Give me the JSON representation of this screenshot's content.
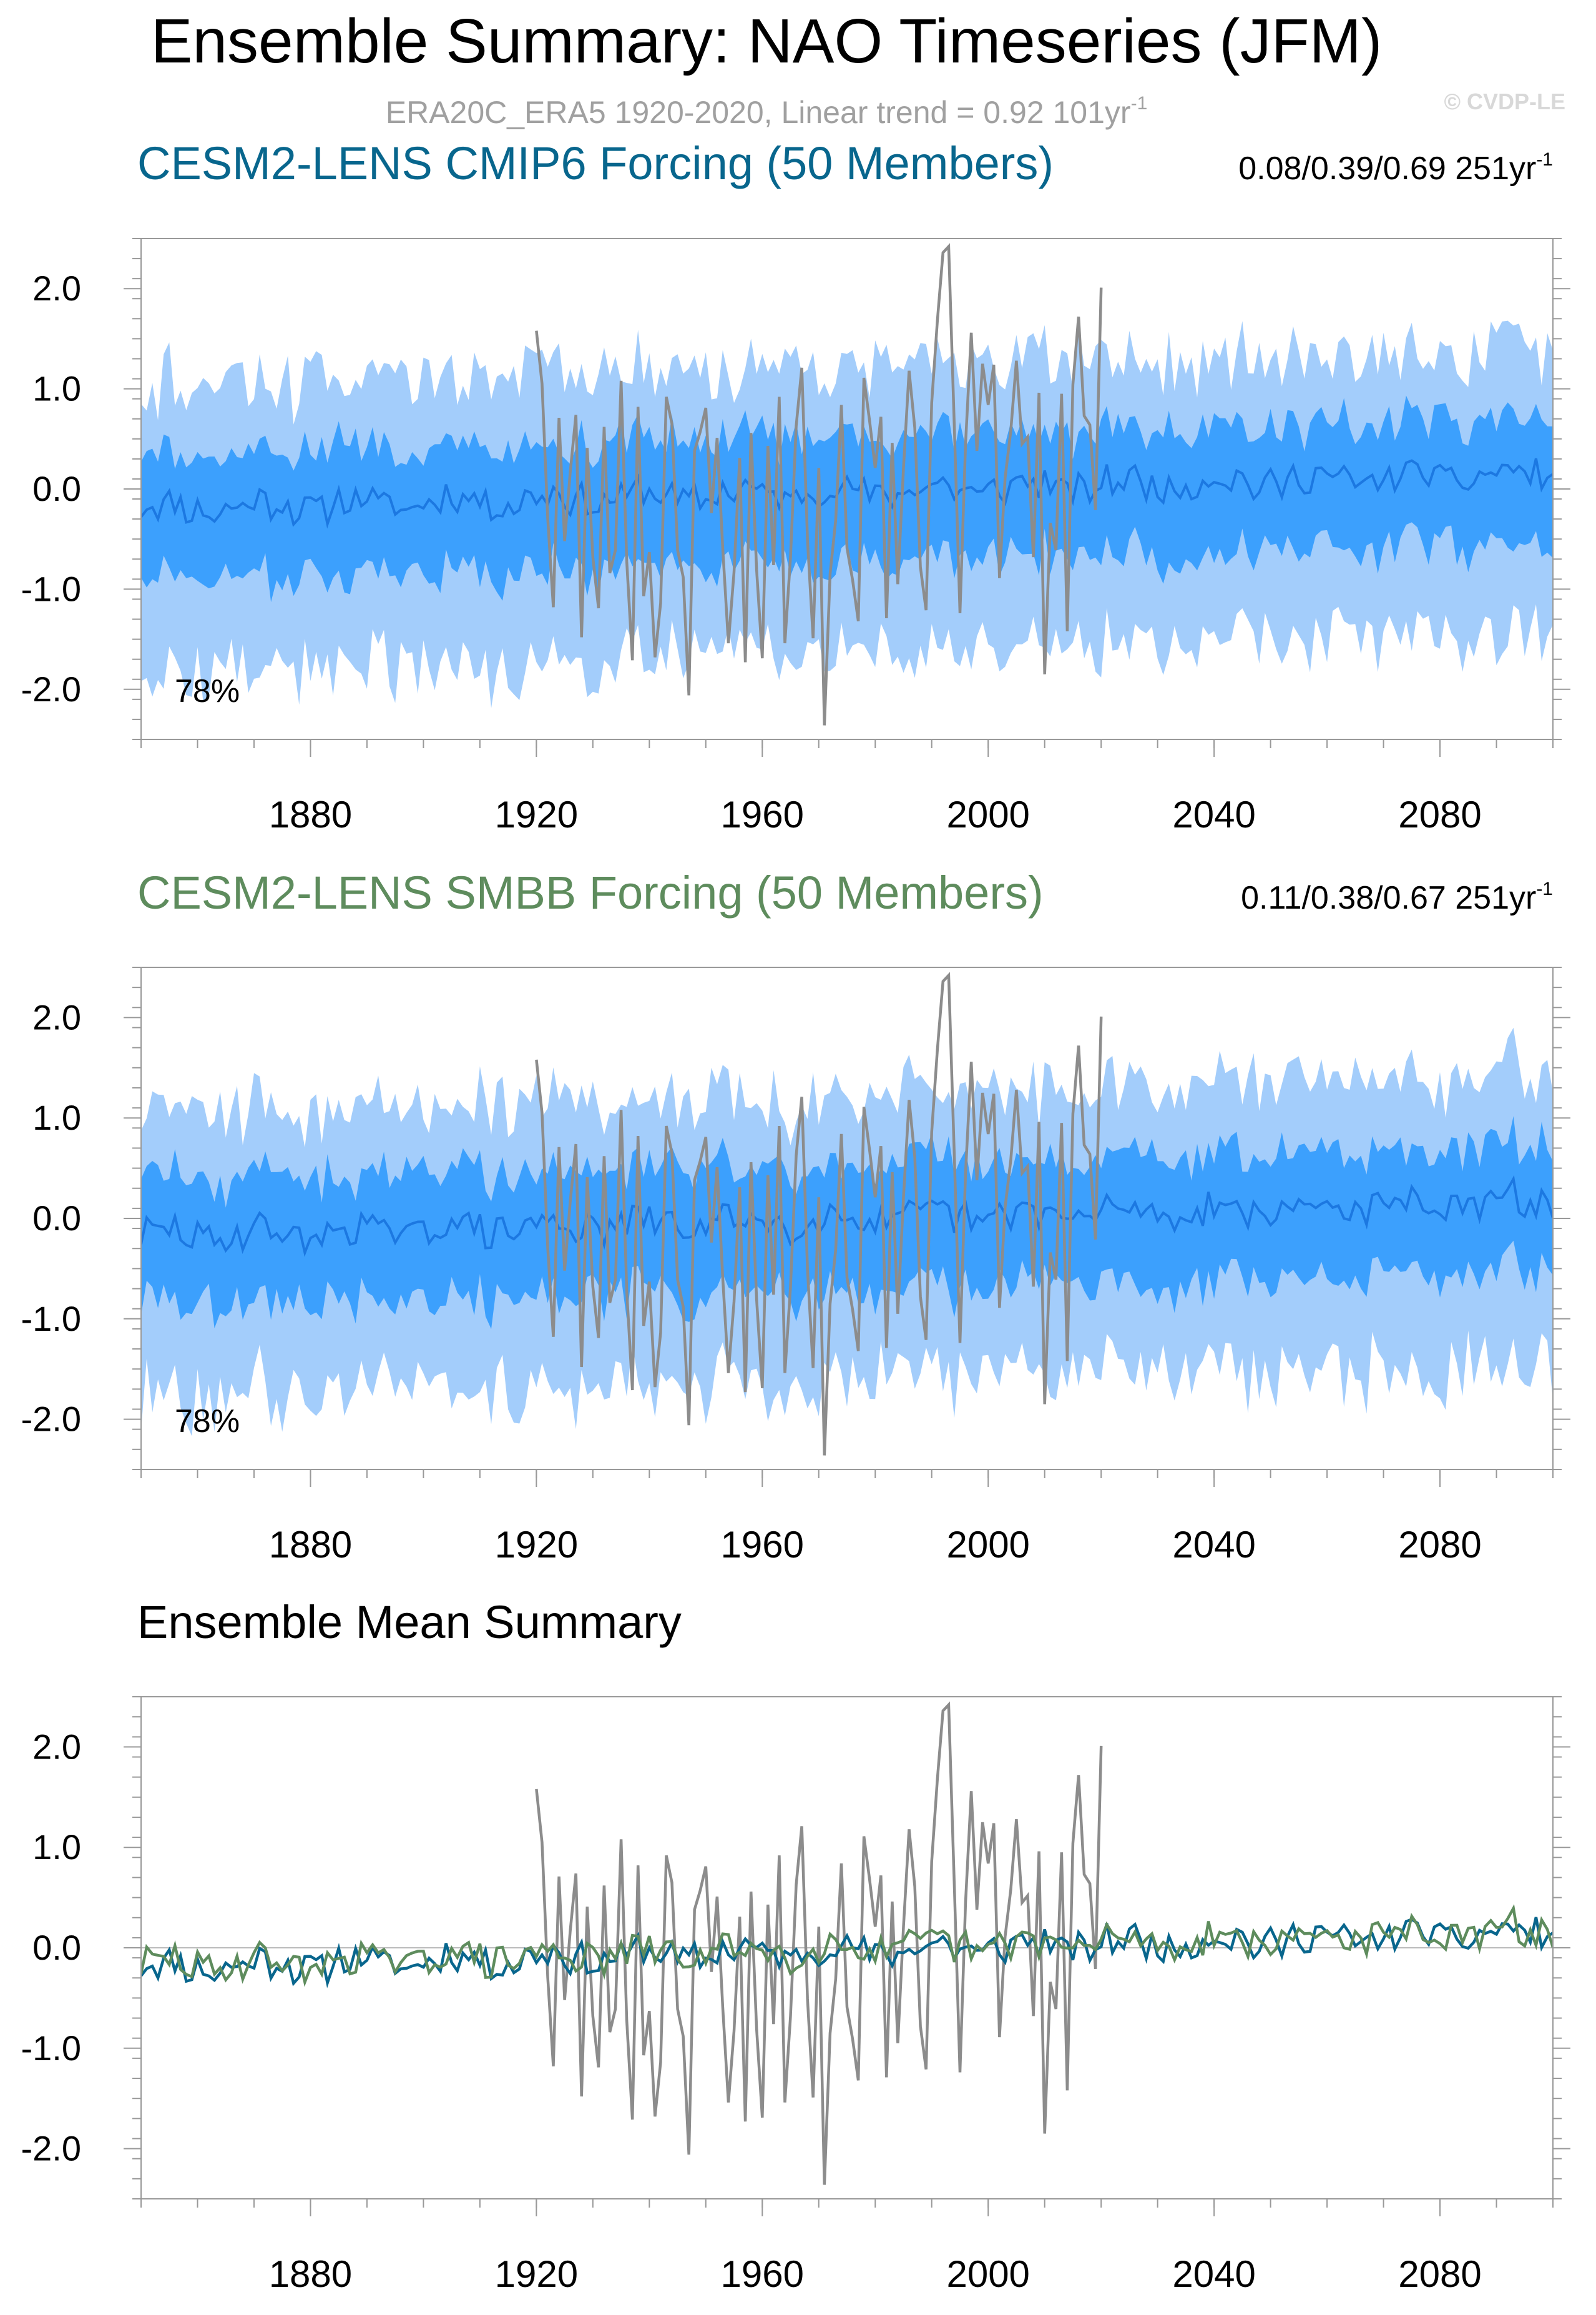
{
  "page": {
    "title": "Ensemble Summary: NAO Timeseries (JFM)",
    "subtitle": "ERA20C_ERA5 1920-2020, Linear trend = 0.92 101yr",
    "subtitle_sup": "-1",
    "watermark": "© CVDP-LE"
  },
  "colors": {
    "outer_band": "#a3cdfb",
    "inner_band": "#3ca0fd",
    "mean_line": "#1c78e1",
    "obs": "#8c8c8c",
    "cmip6": "#08668d",
    "smbb": "#5e8c5d",
    "zero": "#bbbbbb"
  },
  "chart_data": [
    {
      "type": "area",
      "title": "CESM2-LENS CMIP6 Forcing (50 Members)",
      "title_color": "#08668d",
      "stats": "0.08/0.39/0.69 251yr",
      "stats_sup": "-1",
      "percent": "78%",
      "xlim": [
        1850,
        2100
      ],
      "ylim": [
        -2.5,
        2.5
      ],
      "xticks": [
        "1880",
        "1920",
        "1960",
        "2000",
        "2040",
        "2080"
      ],
      "yticks": [
        "2.0",
        "1.0",
        "0.0",
        "-1.0",
        "-2.0"
      ],
      "series": [
        {
          "role": "ensemble-mean",
          "start": 1850,
          "end": 2100,
          "seed": 11,
          "mean_trend": [
            -0.2,
            0.15
          ],
          "noise": 0.07
        },
        {
          "role": "inner-band",
          "half_width": 0.55
        },
        {
          "role": "outer-band",
          "half_width": 1.25
        },
        {
          "role": "observations",
          "start": 1920,
          "end": 2020
        }
      ]
    },
    {
      "type": "area",
      "title": "CESM2-LENS SMBB Forcing (50 Members)",
      "title_color": "#5e8c5d",
      "stats": "0.11/0.38/0.67 251yr",
      "stats_sup": "-1",
      "percent": "78%",
      "xlim": [
        1850,
        2100
      ],
      "ylim": [
        -2.5,
        2.5
      ],
      "xticks": [
        "1880",
        "1920",
        "1960",
        "2000",
        "2040",
        "2080"
      ],
      "yticks": [
        "2.0",
        "1.0",
        "0.0",
        "-1.0",
        "-2.0"
      ],
      "series": [
        {
          "role": "ensemble-mean",
          "start": 1850,
          "end": 2100,
          "seed": 29,
          "mean_trend": [
            -0.18,
            0.16
          ],
          "noise": 0.07
        },
        {
          "role": "inner-band",
          "half_width": 0.55
        },
        {
          "role": "outer-band",
          "half_width": 1.25
        },
        {
          "role": "observations",
          "start": 1920,
          "end": 2020
        }
      ]
    },
    {
      "type": "line",
      "title": "Ensemble Mean Summary",
      "title_color": "#000000",
      "xlim": [
        1850,
        2100
      ],
      "ylim": [
        -2.5,
        2.5
      ],
      "xticks": [
        "1880",
        "1920",
        "1960",
        "2000",
        "2040",
        "2080"
      ],
      "yticks": [
        "2.0",
        "1.0",
        "0.0",
        "-1.0",
        "-2.0"
      ],
      "series": [
        {
          "role": "observations",
          "color": "#8c8c8c"
        },
        {
          "role": "cmip6-mean",
          "color": "#08668d"
        },
        {
          "role": "smbb-mean",
          "color": "#5e8c5d"
        }
      ]
    }
  ],
  "observations": {
    "start": 1920,
    "values": [
      1.58,
      1.05,
      -0.29,
      -1.18,
      0.71,
      -0.52,
      0.17,
      0.74,
      -1.48,
      0.41,
      -0.68,
      -1.19,
      0.62,
      -0.84,
      -0.61,
      1.08,
      -0.72,
      -1.71,
      0.82,
      -1.07,
      -0.63,
      -1.68,
      -1.14,
      0.92,
      0.65,
      -0.61,
      -0.88,
      -2.06,
      0.38,
      0.57,
      0.81,
      -0.24,
      0.51,
      -0.59,
      -1.54,
      -0.83,
      0.31,
      -1.73,
      0.56,
      -0.81,
      -1.69,
      0.43,
      -0.76,
      0.92,
      -1.54,
      -0.68,
      0.63,
      1.21,
      -0.51,
      -1.49,
      0.21,
      -2.36,
      -0.85,
      -0.31,
      0.84,
      -0.59,
      -0.91,
      -1.32,
      1.11,
      0.68,
      0.21,
      0.72,
      -1.29,
      0.46,
      -0.95,
      0.21,
      1.18,
      0.61,
      -0.78,
      -1.21,
      0.86,
      1.68,
      2.36,
      2.42,
      0.63,
      -1.24,
      0.46,
      1.56,
      0.38,
      1.25,
      0.84,
      1.24,
      -0.89,
      0.11,
      0.58,
      1.28,
      0.45,
      0.52,
      -0.68,
      0.96,
      -1.85,
      -0.34,
      -0.61,
      0.95,
      -1.42,
      1.04,
      1.72,
      0.73,
      0.64,
      -0.21,
      2.01
    ]
  }
}
